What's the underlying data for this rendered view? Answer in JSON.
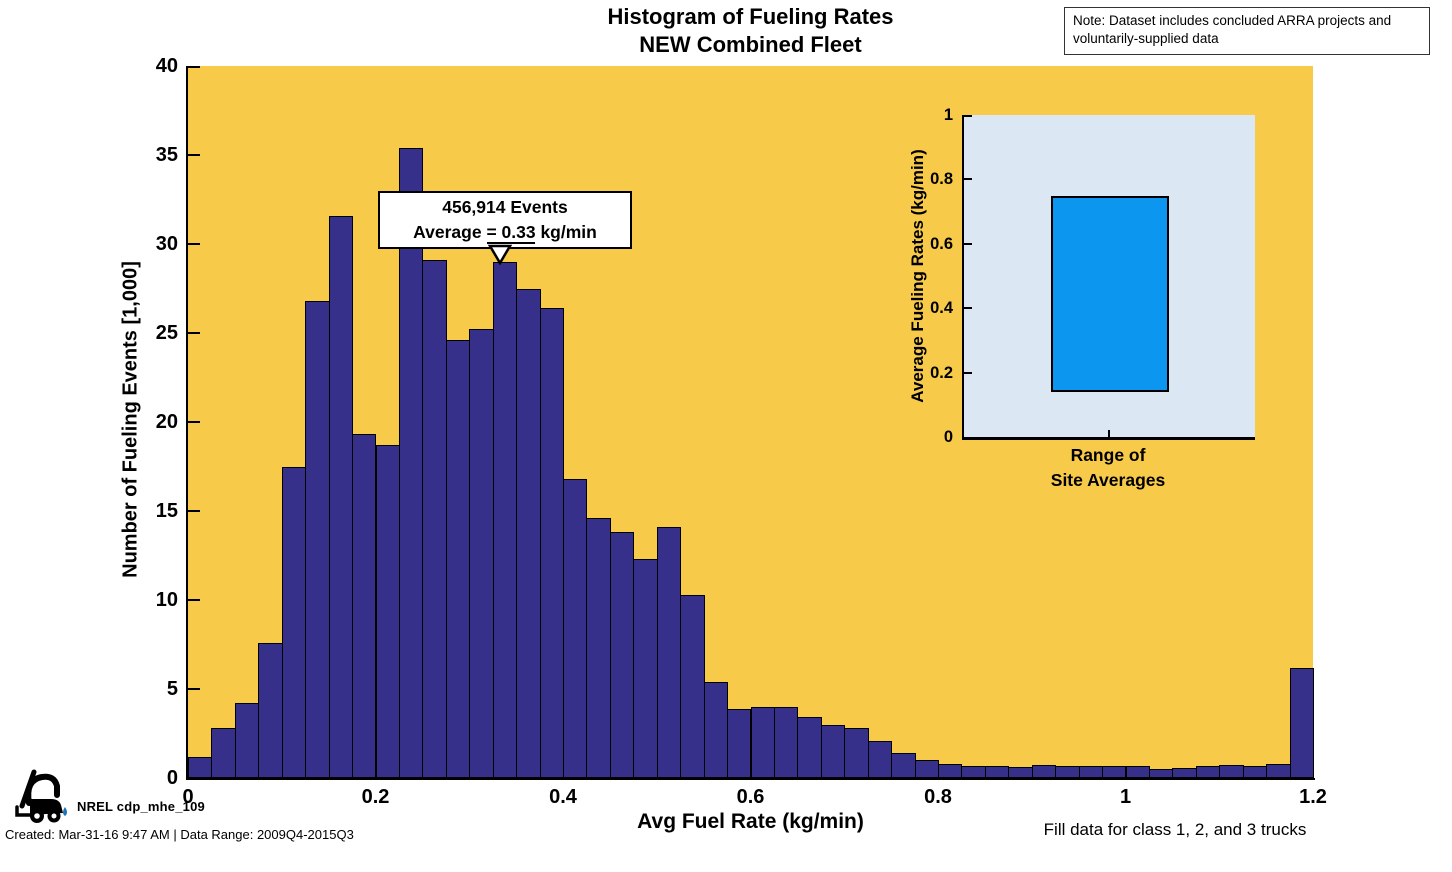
{
  "header": {
    "note": "Note: Dataset includes concluded ARRA projects and voluntarily-supplied data"
  },
  "footer": {
    "nrel_credit": "NREL cdp_mhe_109",
    "creation_info": "Created: Mar-31-16 9:47 AM | Data Range: 2009Q4-2015Q3",
    "fill_data_note": "Fill data for class 1, 2, and 3 trucks"
  },
  "colors": {
    "plot_bg": "#F8CA49",
    "bar_fill": "#37308A",
    "bar_edge": "#000000",
    "inset_bg": "#DCE7F4",
    "inset_bar": "#0D96F0",
    "logo_drop_blue": "#1C75BC"
  },
  "chart_data": [
    {
      "type": "bar",
      "subtype": "histogram",
      "title_lines": [
        "Histogram of Fueling Rates",
        "NEW Combined Fleet"
      ],
      "xlabel": "Avg Fuel Rate (kg/min)",
      "ylabel": "Number of Fueling Events [1,000]",
      "xlim": [
        0,
        1.2
      ],
      "ylim": [
        0,
        40
      ],
      "grid": false,
      "bin_start": 0,
      "bin_width": 0.025,
      "values_thousands": [
        1.2,
        2.8,
        4.2,
        7.6,
        17.5,
        26.8,
        31.6,
        19.3,
        18.7,
        35.4,
        29.1,
        24.6,
        25.2,
        29.0,
        27.5,
        26.4,
        16.8,
        14.6,
        13.8,
        12.3,
        14.1,
        10.3,
        5.4,
        3.9,
        4.0,
        4.0,
        3.4,
        3.0,
        2.8,
        2.1,
        1.4,
        1.0,
        0.8,
        0.7,
        0.65,
        0.6,
        0.75,
        0.7,
        0.7,
        0.7,
        0.65,
        0.5,
        0.55,
        0.7,
        0.75,
        0.7,
        0.8,
        6.2
      ],
      "xtick_labels": [
        "0",
        "0.2",
        "0.4",
        "0.6",
        "0.8",
        "1",
        "1.2"
      ],
      "ytick_labels": [
        "0",
        "5",
        "10",
        "15",
        "20",
        "25",
        "30",
        "35",
        "40"
      ],
      "annotation": {
        "line1": "456,914 Events",
        "line2": "Average = 0.33 kg/min",
        "arrow_x": 0.33
      }
    },
    {
      "type": "bar",
      "subtype": "floating-range-bar",
      "ylabel": "Average Fueling Rates (kg/min)",
      "xlabel_lines": [
        "Range of",
        "Site Averages"
      ],
      "ylim": [
        0,
        1
      ],
      "ytick_labels": [
        "0",
        "0.2",
        "0.4",
        "0.6",
        "0.8",
        "1"
      ],
      "range_low": 0.14,
      "range_high": 0.75
    }
  ]
}
